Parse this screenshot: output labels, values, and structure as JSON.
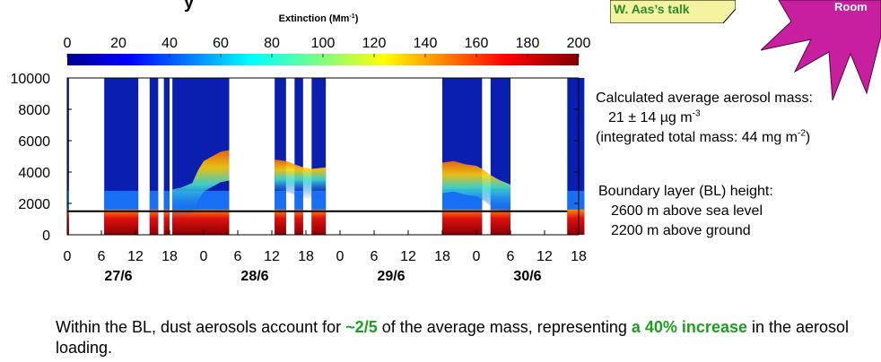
{
  "header": {
    "title_fragment": "y",
    "talk_link": "W. Aas’s talk",
    "room_badge": "Room",
    "room_badge_color": "#c81ea0"
  },
  "colorbar": {
    "title": "Extinction (Mm",
    "title_sup": "-1",
    "title_close": ")",
    "ticks": [
      "0",
      "20",
      "40",
      "60",
      "80",
      "100",
      "120",
      "140",
      "160",
      "180",
      "200"
    ],
    "colormap": "jet"
  },
  "chart_data": {
    "type": "heatmap",
    "description_axis": "time (hours) vs altitude",
    "x_tick_labels": [
      "0",
      "6",
      "12",
      "18",
      "0",
      "6",
      "12",
      "18",
      "0",
      "6",
      "12",
      "18",
      "0",
      "6",
      "12",
      "18"
    ],
    "x_hours": [
      0,
      6,
      12,
      18,
      24,
      30,
      36,
      42,
      48,
      54,
      60,
      66,
      72,
      78,
      84,
      90
    ],
    "x_range_hours": [
      0,
      90
    ],
    "day_labels": [
      {
        "label": "27/6",
        "hour": 9
      },
      {
        "label": "28/6",
        "hour": 33
      },
      {
        "label": "29/6",
        "hour": 57
      },
      {
        "label": "30/6",
        "hour": 81
      }
    ],
    "y_ticks": [
      0,
      2000,
      4000,
      6000,
      8000,
      10000
    ],
    "ylim": [
      0,
      10000
    ],
    "color_range": [
      0,
      200
    ],
    "reference_line_y": 1500,
    "data_periods_hours": [
      [
        0,
        0.3
      ],
      [
        6.5,
        12.5
      ],
      [
        14.5,
        16
      ],
      [
        17,
        18
      ],
      [
        18.5,
        28.5
      ],
      [
        36.5,
        38.5
      ],
      [
        40,
        41.5
      ],
      [
        43,
        45.5
      ],
      [
        66,
        73
      ],
      [
        74.5,
        78
      ],
      [
        88,
        91
      ]
    ],
    "cloud_top_profile": [
      {
        "segment": 0,
        "points": [
          [
            18.5,
            2900
          ],
          [
            20,
            3000
          ],
          [
            22,
            3300
          ],
          [
            23,
            4100
          ],
          [
            24,
            4700
          ],
          [
            25,
            4900
          ],
          [
            26,
            5100
          ],
          [
            27,
            5300
          ],
          [
            28.5,
            5400
          ]
        ]
      },
      {
        "segment": 1,
        "points": [
          [
            36.5,
            4800
          ],
          [
            38.5,
            4700
          ],
          [
            40,
            4500
          ],
          [
            41.5,
            4300
          ],
          [
            43,
            4200
          ],
          [
            45.5,
            4300
          ]
        ]
      },
      {
        "segment": 2,
        "points": [
          [
            66,
            4600
          ],
          [
            68,
            4700
          ],
          [
            70,
            4500
          ],
          [
            72,
            4400
          ],
          [
            73,
            4200
          ],
          [
            74.5,
            3800
          ],
          [
            76,
            3500
          ],
          [
            78,
            3200
          ]
        ]
      }
    ]
  },
  "annotations": {
    "mass_heading": "Calculated average aerosol mass:",
    "mass_value": "21 ± 14 µg m",
    "mass_value_sup": "-3",
    "integrated_prefix": "(integrated total mass: 44 mg m",
    "integrated_sup": "-2",
    "integrated_suffix": ")",
    "bl_heading": "Boundary layer (BL) height:",
    "bl_asl": "2600 m above sea level",
    "bl_agl": "2200 m above ground"
  },
  "bottom_text": {
    "part1": "Within the BL, dust aerosols account for ",
    "highlight1": "~2/5",
    "part2": " of the average mass, representing ",
    "highlight2": "a 40% increase",
    "part3": " in the aerosol loading."
  }
}
